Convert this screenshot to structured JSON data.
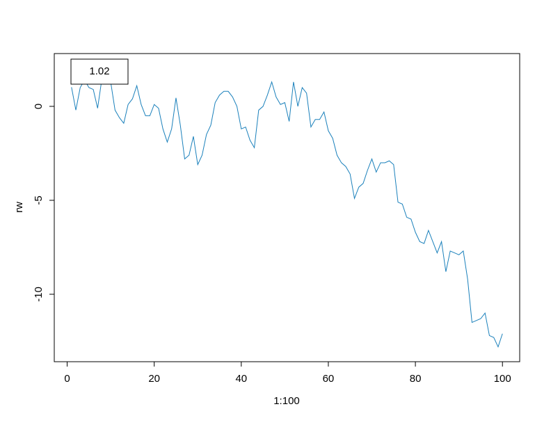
{
  "chart_data": {
    "type": "line",
    "xlabel": "1:100",
    "ylabel": "rw",
    "x": [
      1,
      2,
      3,
      4,
      5,
      6,
      7,
      8,
      9,
      10,
      11,
      12,
      13,
      14,
      15,
      16,
      17,
      18,
      19,
      20,
      21,
      22,
      23,
      24,
      25,
      26,
      27,
      28,
      29,
      30,
      31,
      32,
      33,
      34,
      35,
      36,
      37,
      38,
      39,
      40,
      41,
      42,
      43,
      44,
      45,
      46,
      47,
      48,
      49,
      50,
      51,
      52,
      53,
      54,
      55,
      56,
      57,
      58,
      59,
      60,
      61,
      62,
      63,
      64,
      65,
      66,
      67,
      68,
      69,
      70,
      71,
      72,
      73,
      74,
      75,
      76,
      77,
      78,
      79,
      80,
      81,
      82,
      83,
      84,
      85,
      86,
      87,
      88,
      89,
      90,
      91,
      92,
      93,
      94,
      95,
      96,
      97,
      98,
      99,
      100
    ],
    "series": [
      {
        "name": "1.02",
        "color": "#1a80bb",
        "values": [
          1.02,
          -0.2,
          1.0,
          1.4,
          1.0,
          0.9,
          -0.1,
          1.5,
          1.6,
          1.3,
          -0.2,
          -0.6,
          -0.9,
          0.1,
          0.4,
          1.1,
          0.1,
          -0.5,
          -0.5,
          0.1,
          -0.1,
          -1.2,
          -1.9,
          -1.2,
          0.45,
          -1.0,
          -2.8,
          -2.6,
          -1.6,
          -3.1,
          -2.6,
          -1.5,
          -1.0,
          0.2,
          0.6,
          0.8,
          0.8,
          0.5,
          0.0,
          -1.2,
          -1.1,
          -1.8,
          -2.2,
          -0.2,
          0.0,
          0.6,
          1.3,
          0.5,
          0.1,
          0.2,
          -0.8,
          1.3,
          0.0,
          1.0,
          0.7,
          -1.1,
          -0.7,
          -0.7,
          -0.3,
          -1.3,
          -1.7,
          -2.6,
          -3.0,
          -3.2,
          -3.6,
          -4.9,
          -4.3,
          -4.1,
          -3.4,
          -2.8,
          -3.5,
          -3.0,
          -3.0,
          -2.9,
          -3.1,
          -5.1,
          -5.2,
          -5.9,
          -6.0,
          -6.7,
          -7.2,
          -7.3,
          -6.6,
          -7.2,
          -7.8,
          -7.2,
          -8.8,
          -7.7,
          -7.8,
          -7.9,
          -7.7,
          -9.2,
          -11.5,
          -11.4,
          -11.3,
          -11.0,
          -12.2,
          -12.3,
          -12.8,
          -12.1
        ]
      }
    ],
    "xlim": [
      -2.96,
      103.96
    ],
    "xticks": [
      0,
      20,
      40,
      60,
      80,
      100
    ],
    "ylim": [
      -13.59,
      2.81
    ],
    "yticks": [
      -10,
      -5,
      0
    ],
    "legend": "top-left"
  }
}
